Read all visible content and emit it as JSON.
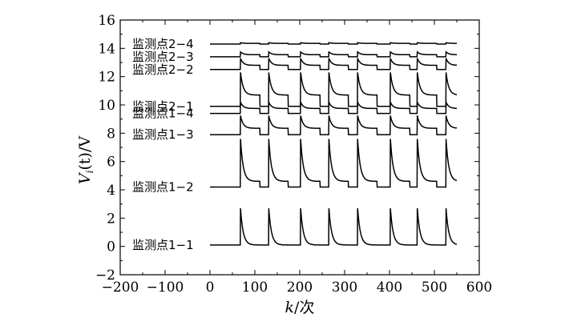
{
  "chart_data": {
    "type": "line",
    "xlabel_k": "k",
    "xlabel_unit": "/次",
    "ylabel_V": "V",
    "ylabel_sub": "i",
    "ylabel_rest": "(t)/V",
    "xlim": [
      -200,
      600
    ],
    "ylim": [
      -2,
      16
    ],
    "xticks": [
      -200,
      -100,
      0,
      100,
      200,
      300,
      400,
      500,
      600
    ],
    "yticks": [
      -2,
      0,
      2,
      4,
      6,
      8,
      10,
      12,
      14,
      16
    ],
    "grid": false,
    "spike_k": [
      68,
      131,
      202,
      265,
      329,
      402,
      462,
      526
    ],
    "series": [
      {
        "name": "监测点2−4",
        "baseline": 14.3,
        "step": 0.05,
        "peak": 0.05
      },
      {
        "name": "监测点2−3",
        "baseline": 13.4,
        "step": 0.15,
        "peak": 0.2
      },
      {
        "name": "监测点2−2",
        "baseline": 12.5,
        "step": 0.3,
        "peak": 0.5
      },
      {
        "name": "监测点2−1",
        "baseline": 9.9,
        "step": 0.8,
        "peak": 1.6
      },
      {
        "name": "监测点1−4",
        "baseline": 9.4,
        "step": 0.35,
        "peak": 0.45
      },
      {
        "name": "监测点1−3",
        "baseline": 7.9,
        "step": 0.45,
        "peak": 0.9
      },
      {
        "name": "监测点1−2",
        "baseline": 4.2,
        "step": 0.4,
        "peak": 3.0
      },
      {
        "name": "监测点1−1",
        "baseline": 0.1,
        "step": 0.0,
        "peak": 2.6
      }
    ]
  }
}
